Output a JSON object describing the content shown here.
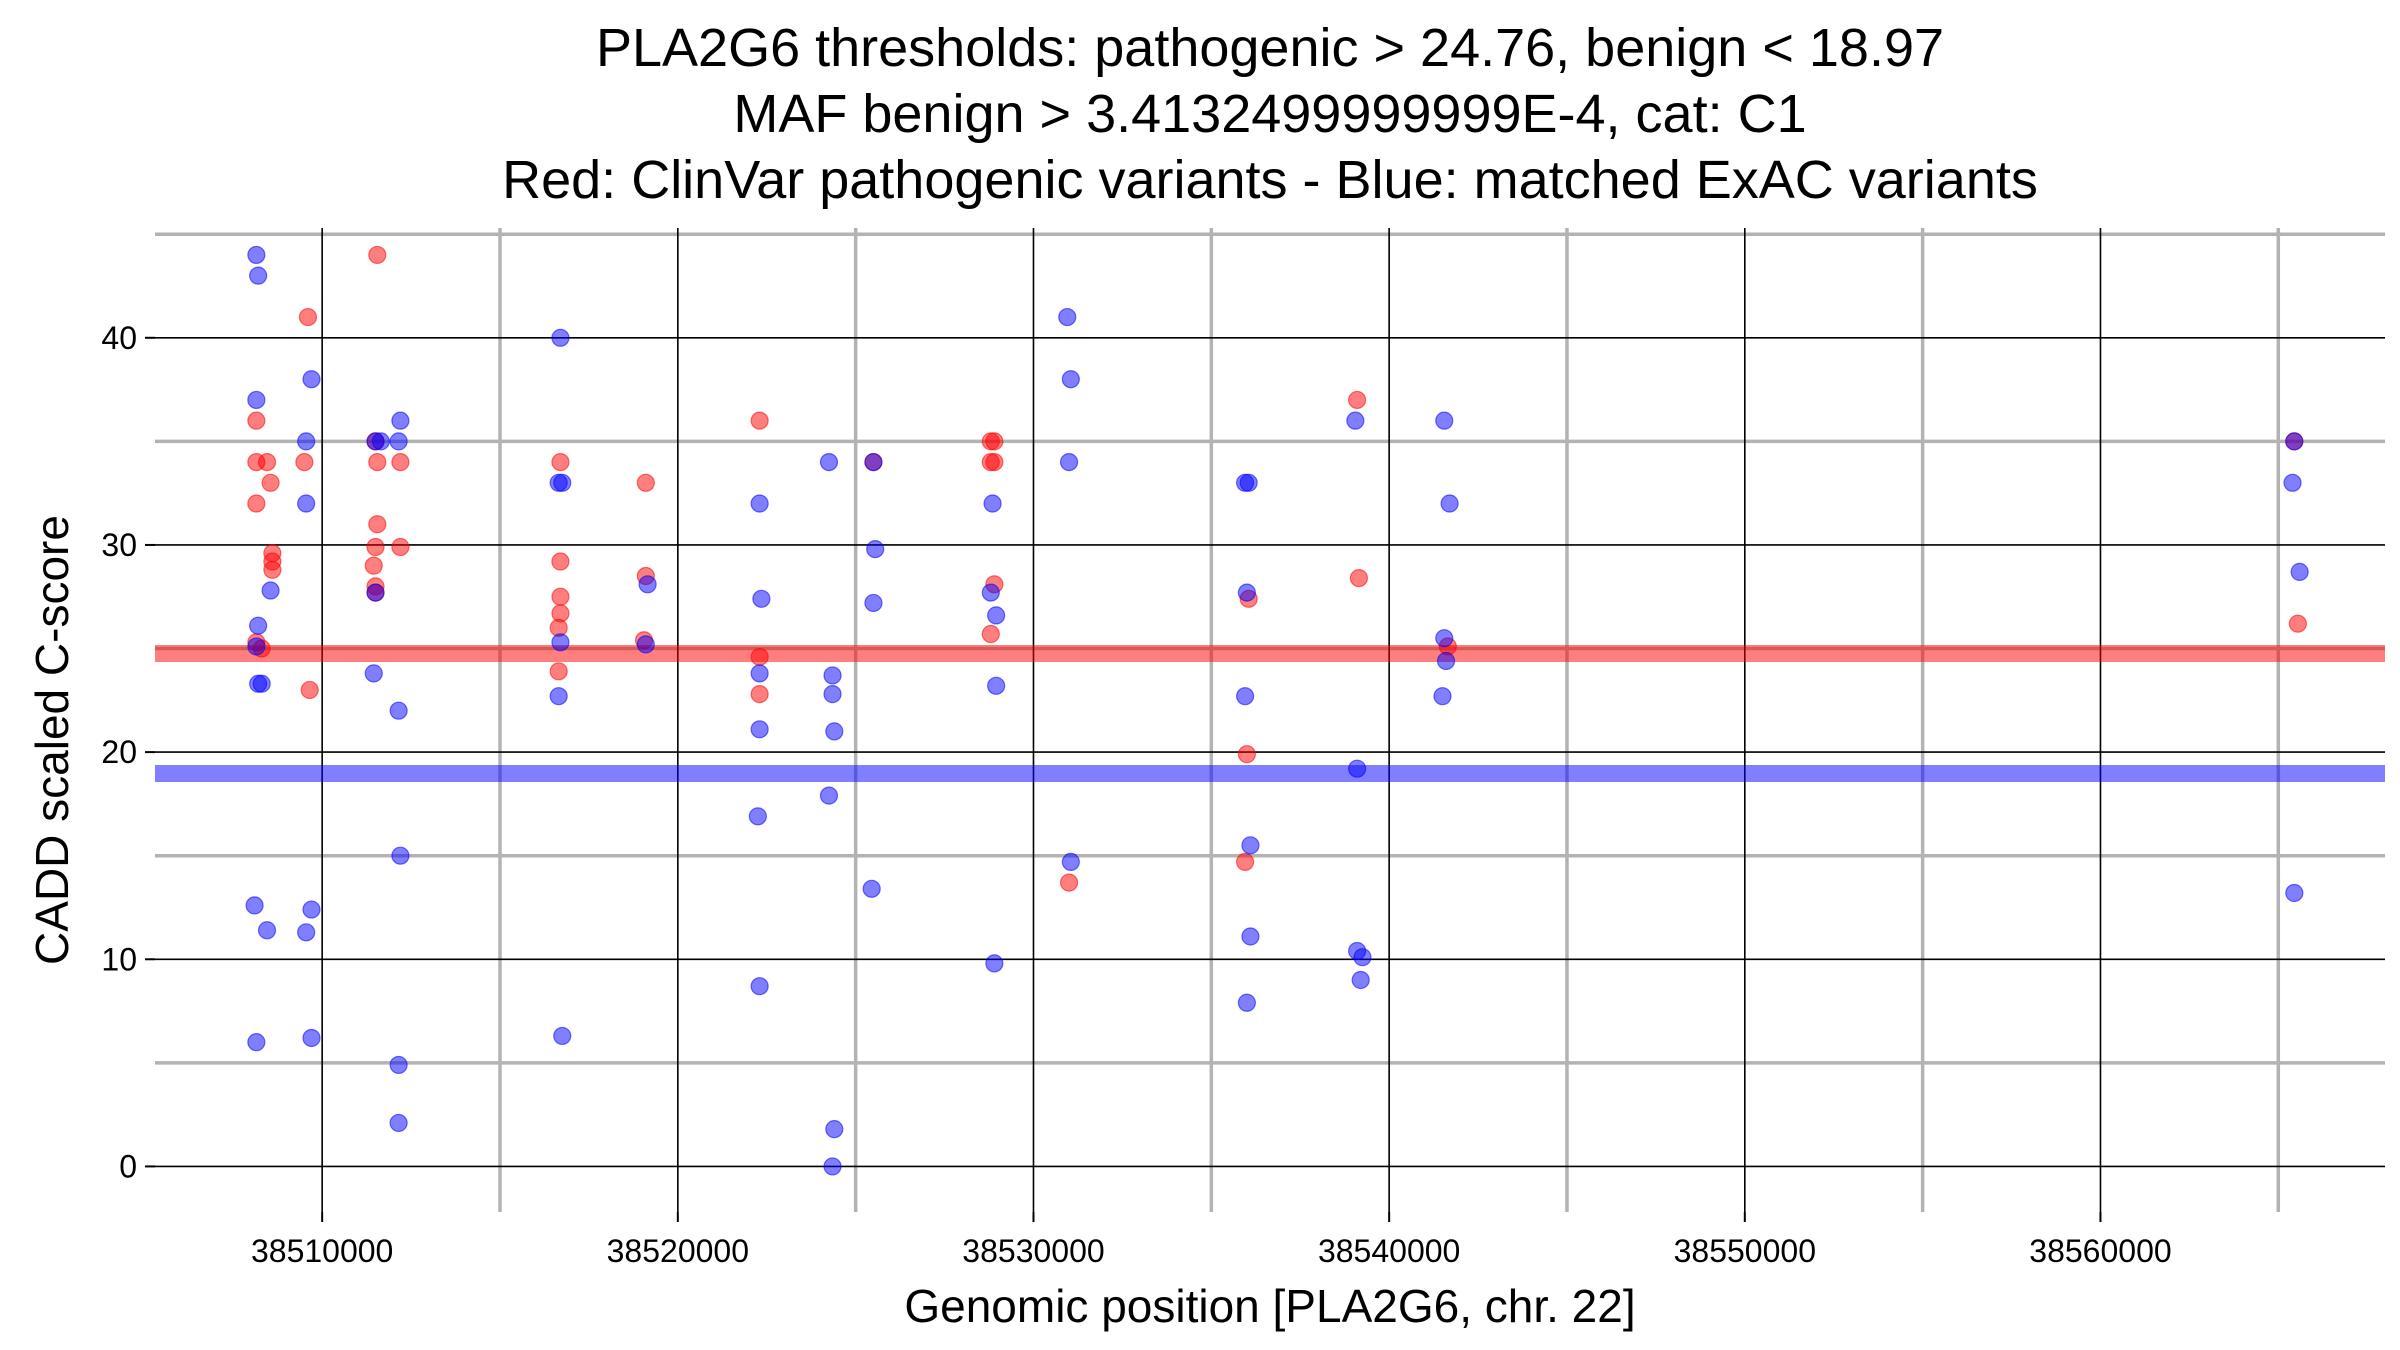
{
  "chart_data": {
    "type": "scatter",
    "title_lines": [
      "PLA2G6 thresholds: pathogenic > 24.76, benign < 18.97",
      "MAF benign > 3.4132499999999E-4, cat: C1",
      "Red: ClinVar pathogenic variants - Blue: matched ExAC variants"
    ],
    "xlabel": "Genomic position [PLA2G6, chr. 22]",
    "ylabel": "CADD scaled C-score",
    "xlim": [
      38505300,
      38568000
    ],
    "ylim": [
      -2.2,
      45.3
    ],
    "x_ticks": [
      38510000,
      38520000,
      38530000,
      38540000,
      38550000,
      38560000
    ],
    "x_tick_labels": [
      "38510000",
      "38520000",
      "38530000",
      "38540000",
      "38550000",
      "38560000"
    ],
    "x_minor_gridlines": [
      38515000,
      38525000,
      38535000,
      38545000,
      38555000,
      38565000
    ],
    "y_ticks": [
      0,
      10,
      20,
      30,
      40
    ],
    "y_tick_labels": [
      "0",
      "10",
      "20",
      "30",
      "40"
    ],
    "y_minor_gridlines": [
      5,
      15,
      25,
      35,
      45
    ],
    "grid": true,
    "thresholds": [
      {
        "name": "pathogenic",
        "value": 24.76,
        "color": "#ff0000"
      },
      {
        "name": "benign",
        "value": 18.97,
        "color": "#0000ff"
      }
    ],
    "colors": {
      "pathogenic": "#ff0000",
      "benign": "#0000ff",
      "major_grid": "#000000",
      "minor_grid": "#b3b3b3"
    },
    "series": [
      {
        "key": "clinvar",
        "color": "#ff0000",
        "points": [
          {
            "x": 38508150,
            "y": 36.0
          },
          {
            "x": 38508150,
            "y": 34.0
          },
          {
            "x": 38508150,
            "y": 32.0
          },
          {
            "x": 38508150,
            "y": 25.3
          },
          {
            "x": 38508300,
            "y": 25.0
          },
          {
            "x": 38508450,
            "y": 34.0
          },
          {
            "x": 38508550,
            "y": 33.0
          },
          {
            "x": 38508600,
            "y": 29.6
          },
          {
            "x": 38508600,
            "y": 29.2
          },
          {
            "x": 38508600,
            "y": 28.8
          },
          {
            "x": 38509600,
            "y": 41.0
          },
          {
            "x": 38509500,
            "y": 34.0
          },
          {
            "x": 38509650,
            "y": 23.0
          },
          {
            "x": 38511550,
            "y": 44.0
          },
          {
            "x": 38511500,
            "y": 35.0
          },
          {
            "x": 38511550,
            "y": 34.0
          },
          {
            "x": 38511550,
            "y": 31.0
          },
          {
            "x": 38511500,
            "y": 29.9
          },
          {
            "x": 38511450,
            "y": 29.0
          },
          {
            "x": 38511500,
            "y": 28.0
          },
          {
            "x": 38511500,
            "y": 27.7
          },
          {
            "x": 38512200,
            "y": 34.0
          },
          {
            "x": 38512200,
            "y": 29.9
          },
          {
            "x": 38516700,
            "y": 34.0
          },
          {
            "x": 38516700,
            "y": 29.2
          },
          {
            "x": 38516700,
            "y": 27.5
          },
          {
            "x": 38516700,
            "y": 26.7
          },
          {
            "x": 38516650,
            "y": 26.0
          },
          {
            "x": 38516650,
            "y": 23.9
          },
          {
            "x": 38519100,
            "y": 33.0
          },
          {
            "x": 38519100,
            "y": 28.5
          },
          {
            "x": 38519050,
            "y": 25.4
          },
          {
            "x": 38522300,
            "y": 36.0
          },
          {
            "x": 38522300,
            "y": 24.6
          },
          {
            "x": 38522300,
            "y": 22.8
          },
          {
            "x": 38525500,
            "y": 34.0
          },
          {
            "x": 38528800,
            "y": 35.0
          },
          {
            "x": 38528900,
            "y": 35.0
          },
          {
            "x": 38528800,
            "y": 34.0
          },
          {
            "x": 38528900,
            "y": 34.0
          },
          {
            "x": 38528900,
            "y": 28.1
          },
          {
            "x": 38528800,
            "y": 25.7
          },
          {
            "x": 38531000,
            "y": 13.7
          },
          {
            "x": 38536050,
            "y": 27.4
          },
          {
            "x": 38536000,
            "y": 19.9
          },
          {
            "x": 38535950,
            "y": 14.7
          },
          {
            "x": 38539100,
            "y": 37.0
          },
          {
            "x": 38539150,
            "y": 28.4
          },
          {
            "x": 38541650,
            "y": 25.1
          },
          {
            "x": 38565450,
            "y": 35.0
          },
          {
            "x": 38565550,
            "y": 26.2
          }
        ]
      },
      {
        "key": "exac",
        "color": "#0000ff",
        "points": [
          {
            "x": 38508150,
            "y": 44.0
          },
          {
            "x": 38508200,
            "y": 43.0
          },
          {
            "x": 38508150,
            "y": 37.0
          },
          {
            "x": 38508200,
            "y": 26.1
          },
          {
            "x": 38508150,
            "y": 25.1
          },
          {
            "x": 38508200,
            "y": 23.3
          },
          {
            "x": 38508300,
            "y": 23.3
          },
          {
            "x": 38508550,
            "y": 27.8
          },
          {
            "x": 38508100,
            "y": 12.6
          },
          {
            "x": 38508450,
            "y": 11.4
          },
          {
            "x": 38508150,
            "y": 6.0
          },
          {
            "x": 38509700,
            "y": 38.0
          },
          {
            "x": 38509550,
            "y": 35.0
          },
          {
            "x": 38509550,
            "y": 32.0
          },
          {
            "x": 38509700,
            "y": 12.4
          },
          {
            "x": 38509550,
            "y": 11.3
          },
          {
            "x": 38509700,
            "y": 6.2
          },
          {
            "x": 38511500,
            "y": 35.0
          },
          {
            "x": 38511650,
            "y": 35.0
          },
          {
            "x": 38511500,
            "y": 27.7
          },
          {
            "x": 38511450,
            "y": 23.8
          },
          {
            "x": 38512200,
            "y": 36.0
          },
          {
            "x": 38512150,
            "y": 35.0
          },
          {
            "x": 38512150,
            "y": 22.0
          },
          {
            "x": 38512200,
            "y": 15.0
          },
          {
            "x": 38512150,
            "y": 4.9
          },
          {
            "x": 38512150,
            "y": 2.1
          },
          {
            "x": 38516700,
            "y": 40.0
          },
          {
            "x": 38516650,
            "y": 33.0
          },
          {
            "x": 38516750,
            "y": 33.0
          },
          {
            "x": 38516700,
            "y": 25.3
          },
          {
            "x": 38516650,
            "y": 22.7
          },
          {
            "x": 38516750,
            "y": 6.3
          },
          {
            "x": 38519150,
            "y": 28.1
          },
          {
            "x": 38519100,
            "y": 25.2
          },
          {
            "x": 38522300,
            "y": 32.0
          },
          {
            "x": 38522350,
            "y": 27.4
          },
          {
            "x": 38522300,
            "y": 23.8
          },
          {
            "x": 38522300,
            "y": 21.1
          },
          {
            "x": 38522250,
            "y": 16.9
          },
          {
            "x": 38522300,
            "y": 8.7
          },
          {
            "x": 38524250,
            "y": 34.0
          },
          {
            "x": 38524350,
            "y": 23.7
          },
          {
            "x": 38524350,
            "y": 22.8
          },
          {
            "x": 38524400,
            "y": 21.0
          },
          {
            "x": 38524250,
            "y": 17.9
          },
          {
            "x": 38524400,
            "y": 1.8
          },
          {
            "x": 38524350,
            "y": 0.0
          },
          {
            "x": 38525500,
            "y": 34.0
          },
          {
            "x": 38525550,
            "y": 29.8
          },
          {
            "x": 38525500,
            "y": 27.2
          },
          {
            "x": 38525450,
            "y": 13.4
          },
          {
            "x": 38528850,
            "y": 32.0
          },
          {
            "x": 38528800,
            "y": 27.7
          },
          {
            "x": 38528950,
            "y": 26.6
          },
          {
            "x": 38528950,
            "y": 23.2
          },
          {
            "x": 38528900,
            "y": 9.8
          },
          {
            "x": 38530950,
            "y": 41.0
          },
          {
            "x": 38531050,
            "y": 38.0
          },
          {
            "x": 38531000,
            "y": 34.0
          },
          {
            "x": 38531050,
            "y": 14.7
          },
          {
            "x": 38535950,
            "y": 33.0
          },
          {
            "x": 38536050,
            "y": 33.0
          },
          {
            "x": 38536000,
            "y": 27.7
          },
          {
            "x": 38535950,
            "y": 22.7
          },
          {
            "x": 38536100,
            "y": 15.5
          },
          {
            "x": 38536100,
            "y": 11.1
          },
          {
            "x": 38536000,
            "y": 7.9
          },
          {
            "x": 38539050,
            "y": 36.0
          },
          {
            "x": 38539100,
            "y": 19.2
          },
          {
            "x": 38539100,
            "y": 10.4
          },
          {
            "x": 38539250,
            "y": 10.1
          },
          {
            "x": 38539200,
            "y": 9.0
          },
          {
            "x": 38541550,
            "y": 36.0
          },
          {
            "x": 38541700,
            "y": 32.0
          },
          {
            "x": 38541550,
            "y": 25.5
          },
          {
            "x": 38541600,
            "y": 24.4
          },
          {
            "x": 38541500,
            "y": 22.7
          },
          {
            "x": 38565450,
            "y": 35.0
          },
          {
            "x": 38565400,
            "y": 33.0
          },
          {
            "x": 38565600,
            "y": 28.7
          },
          {
            "x": 38565450,
            "y": 13.2
          }
        ]
      }
    ]
  }
}
